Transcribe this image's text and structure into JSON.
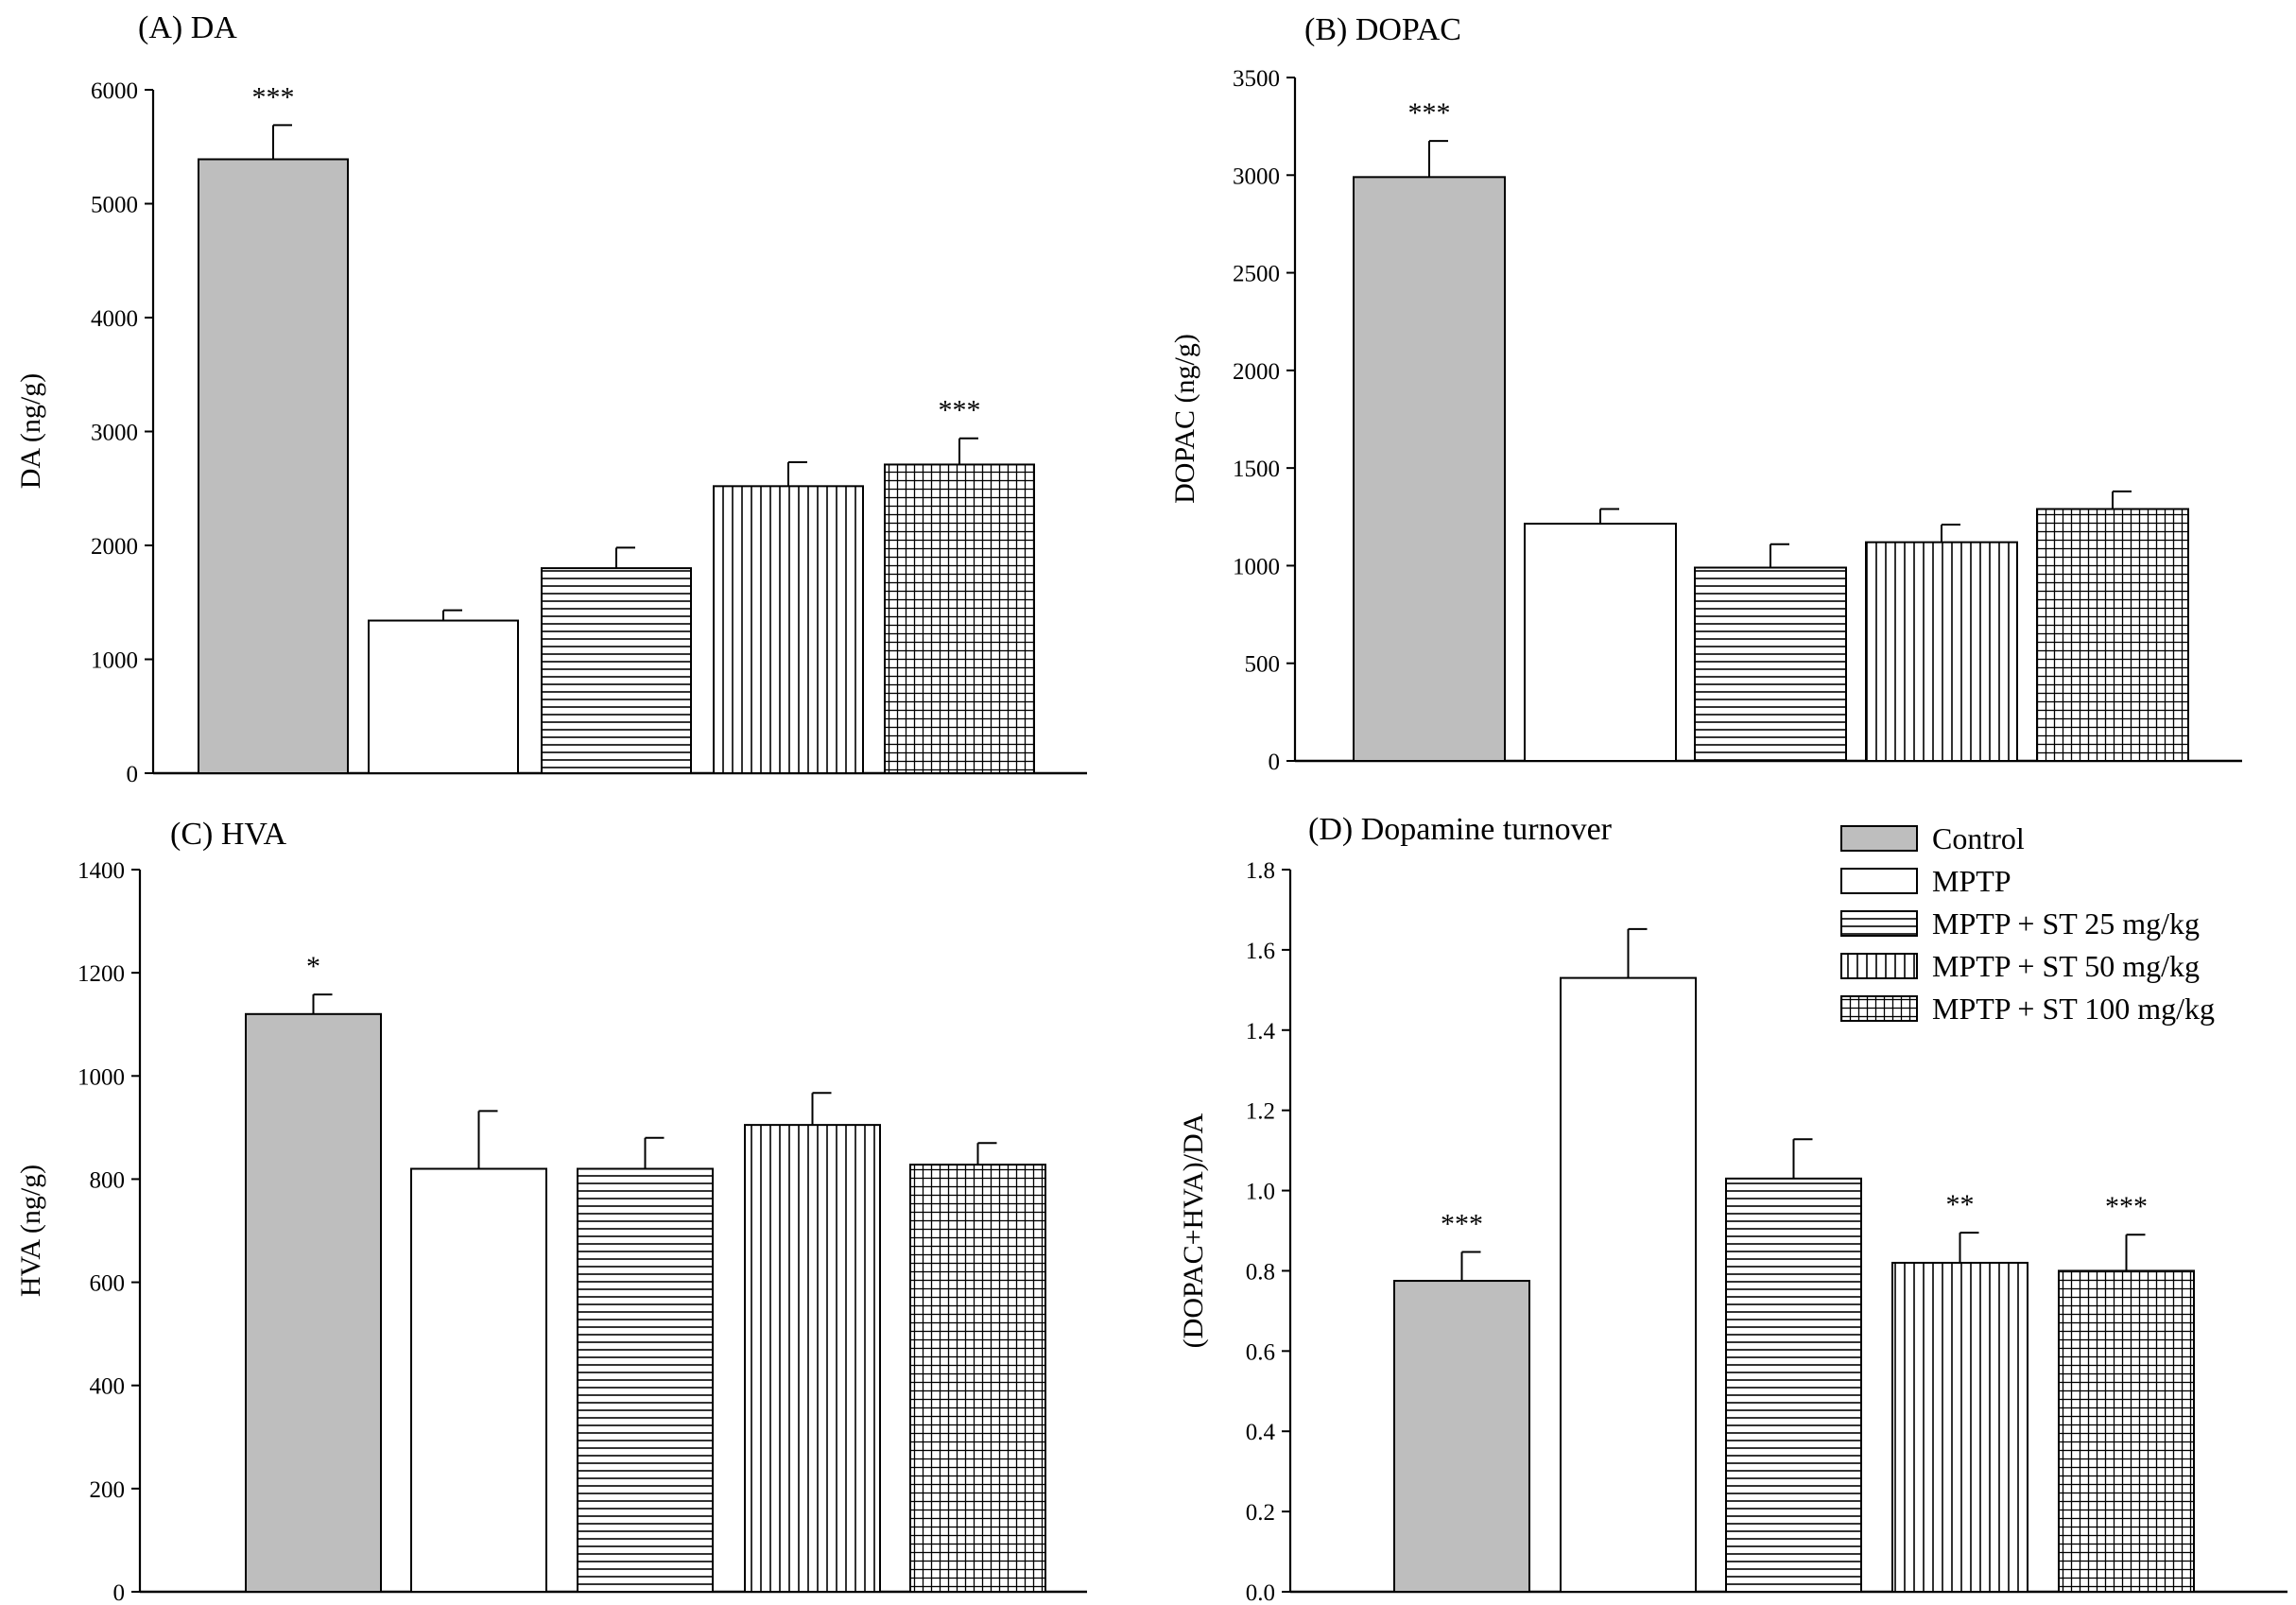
{
  "chart_data": [
    {
      "type": "bar",
      "title": "(A) DA",
      "ylabel": "DA (ng/g)",
      "ylim": [
        0,
        6000
      ],
      "yticks": [
        0,
        1000,
        2000,
        3000,
        4000,
        5000,
        6000
      ],
      "yticklabels": [
        "0",
        "1000",
        "2000",
        "3000",
        "4000",
        "5000",
        "6000"
      ],
      "categories": [
        "Control",
        "MPTP",
        "MPTP + ST 25 mg/kg",
        "MPTP + ST 50 mg/kg",
        "MPTP + ST 100 mg/kg"
      ],
      "values": [
        5390,
        1340,
        1800,
        2520,
        2710
      ],
      "errors": [
        300,
        90,
        180,
        210,
        230
      ],
      "annotations": [
        "***",
        "",
        "",
        "",
        "***"
      ]
    },
    {
      "type": "bar",
      "title": "(B) DOPAC",
      "ylabel": "DOPAC (ng/g)",
      "ylim": [
        0,
        3500
      ],
      "yticks": [
        0,
        500,
        1000,
        1500,
        2000,
        2500,
        3000,
        3500
      ],
      "yticklabels": [
        "0",
        "500",
        "1000",
        "1500",
        "2000",
        "2500",
        "3000",
        "3500"
      ],
      "categories": [
        "Control",
        "MPTP",
        "MPTP + ST 25 mg/kg",
        "MPTP + ST 50 mg/kg",
        "MPTP + ST 100 mg/kg"
      ],
      "values": [
        2990,
        1215,
        990,
        1120,
        1290
      ],
      "errors": [
        185,
        75,
        120,
        90,
        90
      ],
      "annotations": [
        "***",
        "",
        "",
        "",
        ""
      ]
    },
    {
      "type": "bar",
      "title": "(C) HVA",
      "ylabel": "HVA (ng/g)",
      "ylim": [
        0,
        1400
      ],
      "yticks": [
        0,
        200,
        400,
        600,
        800,
        1000,
        1200,
        1400
      ],
      "yticklabels": [
        "0",
        "200",
        "400",
        "600",
        "800",
        "1000",
        "1200",
        "1400"
      ],
      "categories": [
        "Control",
        "MPTP",
        "MPTP + ST 25 mg/kg",
        "MPTP + ST 50 mg/kg",
        "MPTP + ST 100 mg/kg"
      ],
      "values": [
        1120,
        820,
        820,
        905,
        828
      ],
      "errors": [
        38,
        112,
        60,
        62,
        42
      ],
      "annotations": [
        "*",
        "",
        "",
        "",
        ""
      ]
    },
    {
      "type": "bar",
      "title": "(D) Dopamine turnover",
      "ylabel": "(DOPAC+HVA)/DA",
      "ylim": [
        0,
        1.8
      ],
      "yticks": [
        0,
        0.2,
        0.4,
        0.6,
        0.8,
        1.0,
        1.2,
        1.4,
        1.6,
        1.8
      ],
      "yticklabels": [
        "0.0",
        "0.2",
        "0.4",
        "0.6",
        "0.8",
        "1.0",
        "1.2",
        "1.4",
        "1.6",
        "1.8"
      ],
      "categories": [
        "Control",
        "MPTP",
        "MPTP + ST 25 mg/kg",
        "MPTP + ST 50 mg/kg",
        "MPTP + ST 100 mg/kg"
      ],
      "values": [
        0.775,
        1.53,
        1.03,
        0.82,
        0.8
      ],
      "errors": [
        0.072,
        0.122,
        0.098,
        0.075,
        0.09
      ],
      "annotations": [
        "***",
        "",
        "",
        "**",
        "***"
      ]
    }
  ],
  "legend": {
    "placement": "top-right of panel D",
    "items": [
      "Control",
      "MPTP",
      "MPTP + ST 25 mg/kg",
      "MPTP + ST 50 mg/kg",
      "MPTP + ST 100 mg/kg"
    ]
  },
  "bar_fills": [
    "solid-grey",
    "white",
    "horizontal-lines",
    "vertical-lines",
    "grid"
  ],
  "colors": {
    "control_fill": "#bebebe",
    "stroke": "#000000"
  }
}
